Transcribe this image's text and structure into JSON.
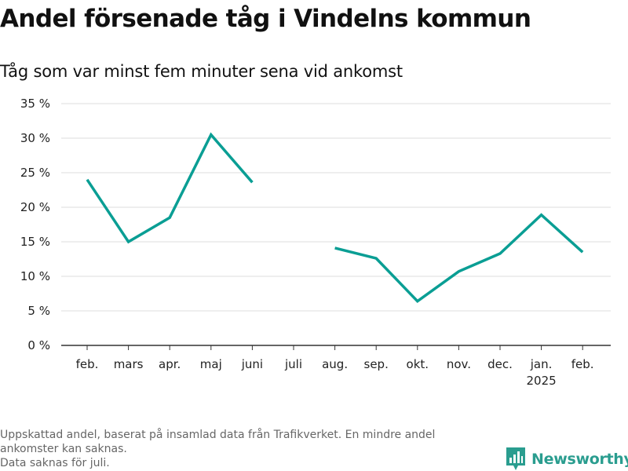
{
  "title": "Andel försenade tåg i Vindelns kommun",
  "subtitle": "Tåg som var minst fem minuter sena vid ankomst",
  "footnote_lines": [
    "Uppskattad andel, baserat på insamlad data från Trafikverket. En mindre andel",
    "ankomster kan saknas.",
    "Data saknas för juli."
  ],
  "logo": {
    "text": "Newsworthy",
    "icon": "newsworthy-bar-chart-icon",
    "color": "#2a9d8f"
  },
  "chart_data": {
    "type": "line",
    "title": "Andel försenade tåg i Vindelns kommun",
    "subtitle": "Tåg som var minst fem minuter sena vid ankomst",
    "categories": [
      "feb.",
      "mars",
      "apr.",
      "maj",
      "juni",
      "juli",
      "aug.",
      "sep.",
      "okt.",
      "nov.",
      "dec.",
      "jan.",
      "feb."
    ],
    "category_sublabels": [
      "",
      "",
      "",
      "",
      "",
      "",
      "",
      "",
      "",
      "",
      "",
      "2025",
      ""
    ],
    "series": [
      {
        "values": [
          24.0,
          15.0,
          18.5,
          30.5,
          23.6,
          null,
          14.1,
          12.6,
          6.4,
          10.7,
          13.3,
          18.9,
          13.5
        ],
        "color": "#0a9e94"
      }
    ],
    "y_ticks": [
      0,
      5,
      10,
      15,
      20,
      25,
      30,
      35
    ],
    "y_tick_labels": [
      "0 %",
      "5 %",
      "10 %",
      "15 %",
      "20 %",
      "25 %",
      "30 %",
      "35 %"
    ],
    "ylim": [
      0,
      35
    ],
    "xlabel": "",
    "ylabel": "",
    "grid": true,
    "legend": false,
    "gridline_color": "#dddddd",
    "axis_color": "#333333"
  }
}
